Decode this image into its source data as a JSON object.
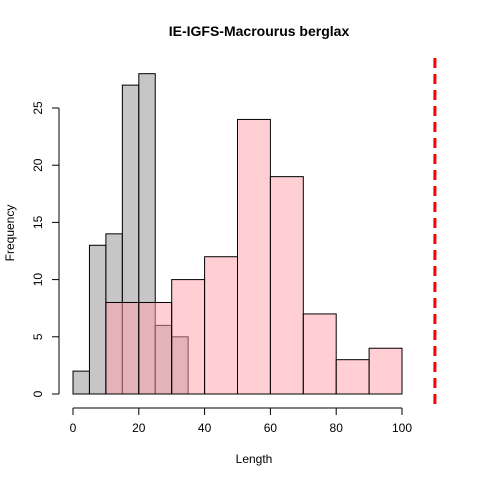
{
  "chart_data": {
    "type": "bar",
    "title": "IE-IGFS-Macrourus berglax",
    "xlabel": "Length",
    "ylabel": "Frequency",
    "xlim": [
      0,
      110
    ],
    "ylim": [
      0,
      28
    ],
    "x_ticks": [
      0,
      20,
      40,
      60,
      80,
      100
    ],
    "y_ticks": [
      0,
      5,
      10,
      15,
      20,
      25
    ],
    "grid": false,
    "series": [
      {
        "fill": "rgba(160,160,160,0.6)",
        "bins": [
          {
            "start": 0,
            "end": 5,
            "count": 2
          },
          {
            "start": 5,
            "end": 10,
            "count": 13
          },
          {
            "start": 10,
            "end": 15,
            "count": 14
          },
          {
            "start": 15,
            "end": 20,
            "count": 27
          },
          {
            "start": 20,
            "end": 25,
            "count": 28
          },
          {
            "start": 25,
            "end": 30,
            "count": 6
          },
          {
            "start": 30,
            "end": 35,
            "count": 5
          }
        ]
      },
      {
        "fill": "rgba(255,160,170,0.5)",
        "bins": [
          {
            "start": 10,
            "end": 20,
            "count": 8
          },
          {
            "start": 20,
            "end": 30,
            "count": 8
          },
          {
            "start": 30,
            "end": 40,
            "count": 10
          },
          {
            "start": 40,
            "end": 50,
            "count": 12
          },
          {
            "start": 50,
            "end": 60,
            "count": 24
          },
          {
            "start": 60,
            "end": 70,
            "count": 19
          },
          {
            "start": 70,
            "end": 80,
            "count": 7
          },
          {
            "start": 80,
            "end": 90,
            "count": 3
          },
          {
            "start": 90,
            "end": 100,
            "count": 4
          }
        ]
      }
    ],
    "reference_line": {
      "x": 110,
      "color": "#ff0000",
      "style": "dashed"
    }
  }
}
